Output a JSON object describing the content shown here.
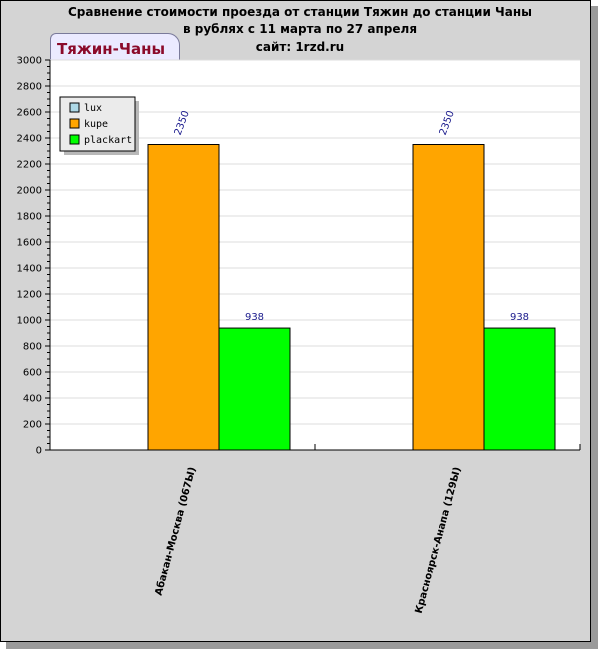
{
  "chart_data": {
    "type": "bar",
    "title_lines": [
      "Сравнение стоимости проезда от станции Тяжин до станции Чаны",
      "в рублях с 11 марта по 27 апреля",
      "сайт: 1rzd.ru"
    ],
    "tab_label": "Тяжин-Чаны",
    "categories": [
      "Абакан-Москва (067Ы)",
      "Красноярск-Анапа (129Ы)"
    ],
    "series": [
      {
        "name": "lux",
        "color": "#add8e6",
        "values": [
          null,
          null
        ]
      },
      {
        "name": "kupe",
        "color": "#ffa500",
        "values": [
          2350,
          2350
        ]
      },
      {
        "name": "plackart",
        "color": "#00ff00",
        "values": [
          938,
          938
        ]
      }
    ],
    "ylim": [
      0,
      3000
    ],
    "ytick_step": 200,
    "grid": true,
    "legend_position": "top-left"
  }
}
